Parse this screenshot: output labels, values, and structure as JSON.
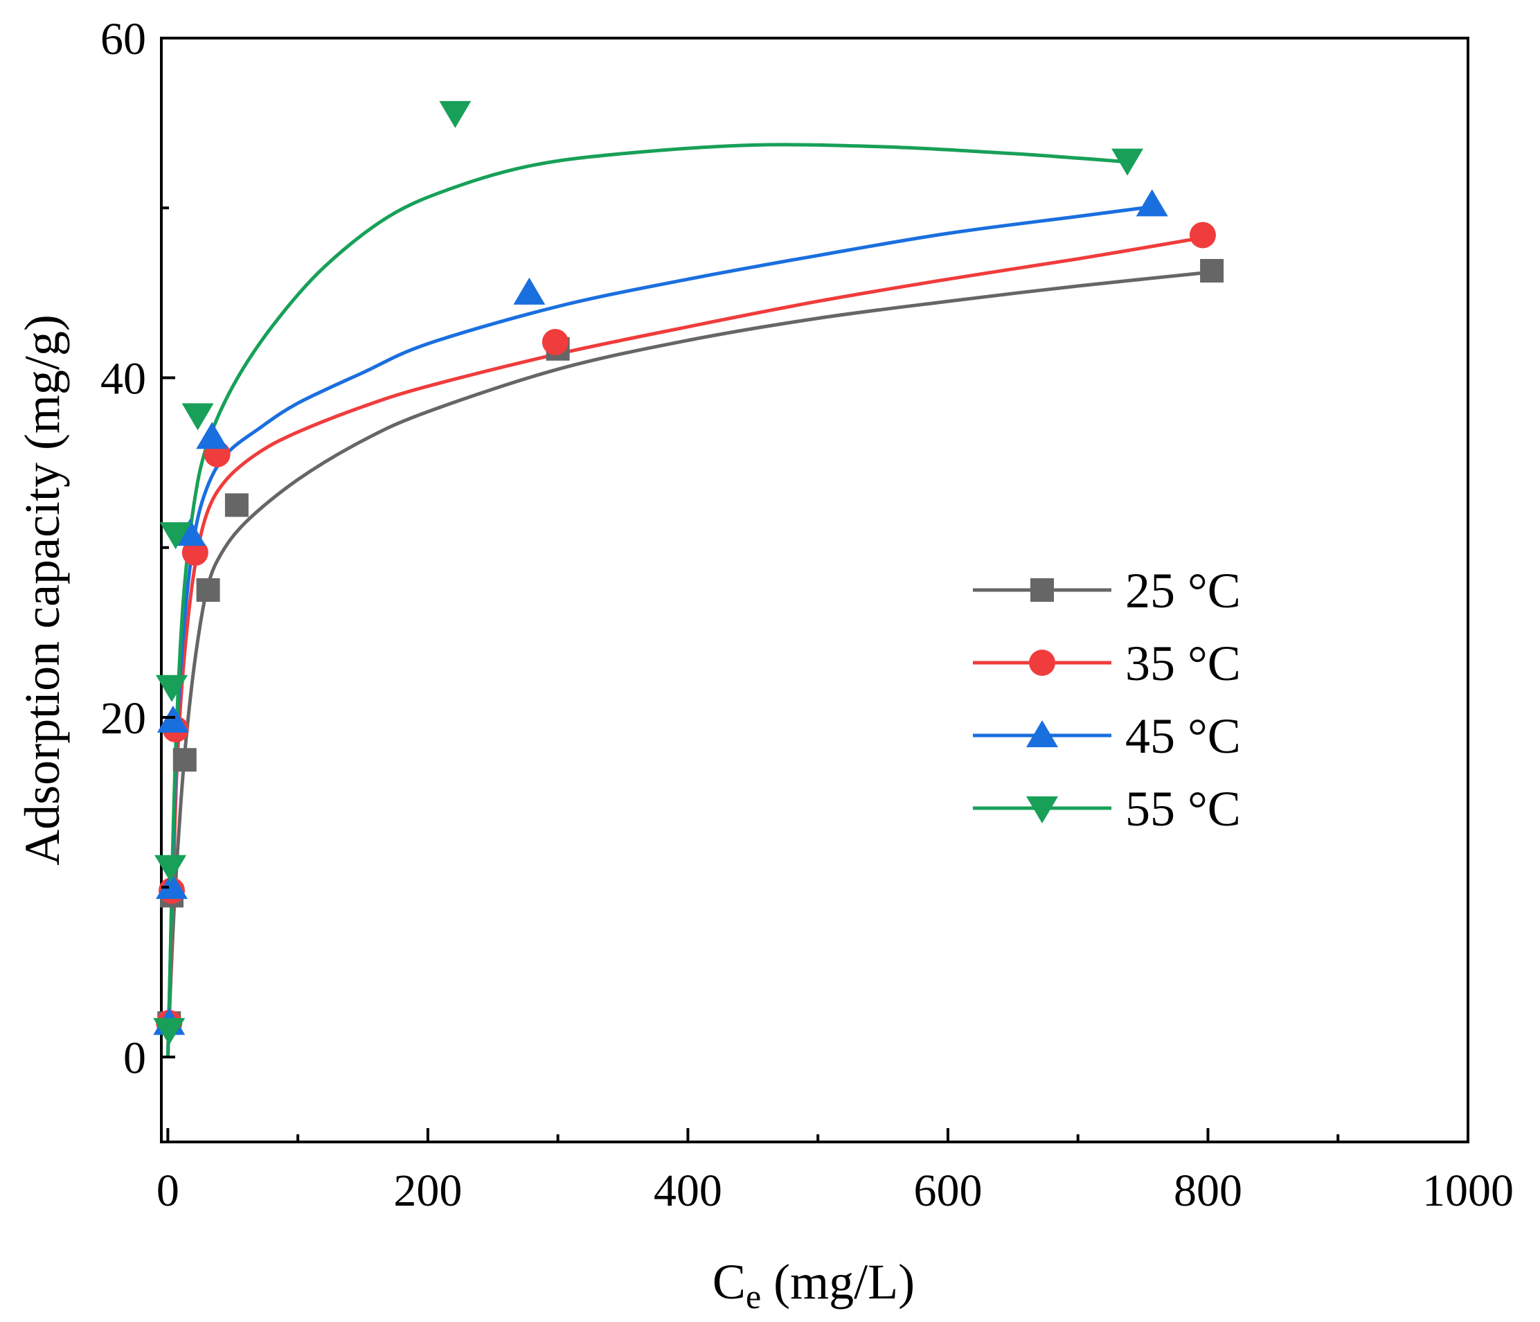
{
  "chart_data": {
    "type": "scatter",
    "xlabel_main": "C",
    "xlabel_sub": "e",
    "xlabel_unit": " (mg/L)",
    "ylabel": "Adsorption capacity (mg/g)",
    "xlim": [
      -5,
      1000
    ],
    "ylim": [
      -5,
      60
    ],
    "x_ticks": [
      0,
      200,
      400,
      600,
      800,
      1000
    ],
    "x_tick_labels": [
      "0",
      "200",
      "400",
      "600",
      "800",
      "1000"
    ],
    "x_minor_ticks": [
      100,
      300,
      500,
      700,
      900
    ],
    "y_ticks": [
      0,
      20,
      40,
      60
    ],
    "y_tick_labels": [
      "0",
      "20",
      "40",
      "60"
    ],
    "y_minor_ticks": [
      10,
      30,
      50
    ],
    "grid": false,
    "legend_position": "center-right",
    "series": [
      {
        "name": "25 °C",
        "color": "#666666",
        "marker": "square",
        "points": [
          [
            1,
            2
          ],
          [
            3,
            9.5
          ],
          [
            13,
            17.5
          ],
          [
            31,
            27.5
          ],
          [
            53,
            32.5
          ],
          [
            300,
            41.7
          ],
          [
            803,
            46.3
          ]
        ],
        "fit": [
          [
            0,
            0
          ],
          [
            2,
            4
          ],
          [
            5,
            9
          ],
          [
            10,
            15
          ],
          [
            15,
            19.5
          ],
          [
            22,
            24
          ],
          [
            30,
            27.5
          ],
          [
            40,
            29.5
          ],
          [
            60,
            31.5
          ],
          [
            100,
            34
          ],
          [
            150,
            36.3
          ],
          [
            200,
            38
          ],
          [
            300,
            40.5
          ],
          [
            400,
            42.2
          ],
          [
            500,
            43.5
          ],
          [
            600,
            44.5
          ],
          [
            700,
            45.4
          ],
          [
            800,
            46.2
          ]
        ]
      },
      {
        "name": "35 °C",
        "color": "#f03c3c",
        "marker": "circle",
        "points": [
          [
            1,
            2
          ],
          [
            3,
            9.8
          ],
          [
            6,
            19.3
          ],
          [
            21,
            29.7
          ],
          [
            38,
            35.5
          ],
          [
            298,
            42.1
          ],
          [
            796,
            48.4
          ]
        ],
        "fit": [
          [
            0,
            0
          ],
          [
            2,
            5
          ],
          [
            4,
            10
          ],
          [
            7,
            17
          ],
          [
            12,
            23
          ],
          [
            20,
            28.5
          ],
          [
            30,
            32
          ],
          [
            45,
            34
          ],
          [
            70,
            35.6
          ],
          [
            100,
            36.8
          ],
          [
            150,
            38.3
          ],
          [
            200,
            39.5
          ],
          [
            300,
            41.4
          ],
          [
            400,
            43
          ],
          [
            500,
            44.5
          ],
          [
            600,
            45.8
          ],
          [
            700,
            47
          ],
          [
            800,
            48.3
          ]
        ]
      },
      {
        "name": "45 °C",
        "color": "#1a6fdf",
        "marker": "triangle-up",
        "points": [
          [
            1,
            2
          ],
          [
            3,
            10
          ],
          [
            4,
            19.8
          ],
          [
            17,
            30.8
          ],
          [
            34,
            36.5
          ],
          [
            278,
            45
          ],
          [
            757,
            50.2
          ]
        ],
        "fit": [
          [
            0,
            0
          ],
          [
            2,
            6
          ],
          [
            4,
            12
          ],
          [
            7,
            19
          ],
          [
            12,
            25
          ],
          [
            20,
            30.5
          ],
          [
            30,
            33.5
          ],
          [
            45,
            35.5
          ],
          [
            70,
            37
          ],
          [
            100,
            38.5
          ],
          [
            150,
            40.3
          ],
          [
            200,
            42
          ],
          [
            300,
            44.2
          ],
          [
            400,
            45.8
          ],
          [
            500,
            47.2
          ],
          [
            600,
            48.5
          ],
          [
            700,
            49.5
          ],
          [
            760,
            50.1
          ]
        ]
      },
      {
        "name": "55 °C",
        "color": "#18a058",
        "marker": "triangle-down",
        "points": [
          [
            1,
            1.6
          ],
          [
            2,
            11.2
          ],
          [
            3,
            21.8
          ],
          [
            6,
            30.8
          ],
          [
            23,
            37.8
          ],
          [
            221,
            55.6
          ],
          [
            738,
            52.8
          ]
        ],
        "fit": [
          [
            0,
            0
          ],
          [
            2,
            6
          ],
          [
            4,
            13
          ],
          [
            7,
            20
          ],
          [
            12,
            27
          ],
          [
            20,
            32.5
          ],
          [
            30,
            36
          ],
          [
            50,
            39.5
          ],
          [
            80,
            43
          ],
          [
            120,
            46.5
          ],
          [
            170,
            49.5
          ],
          [
            220,
            51.2
          ],
          [
            280,
            52.5
          ],
          [
            350,
            53.2
          ],
          [
            450,
            53.7
          ],
          [
            550,
            53.6
          ],
          [
            650,
            53.2
          ],
          [
            740,
            52.7
          ]
        ]
      }
    ]
  }
}
